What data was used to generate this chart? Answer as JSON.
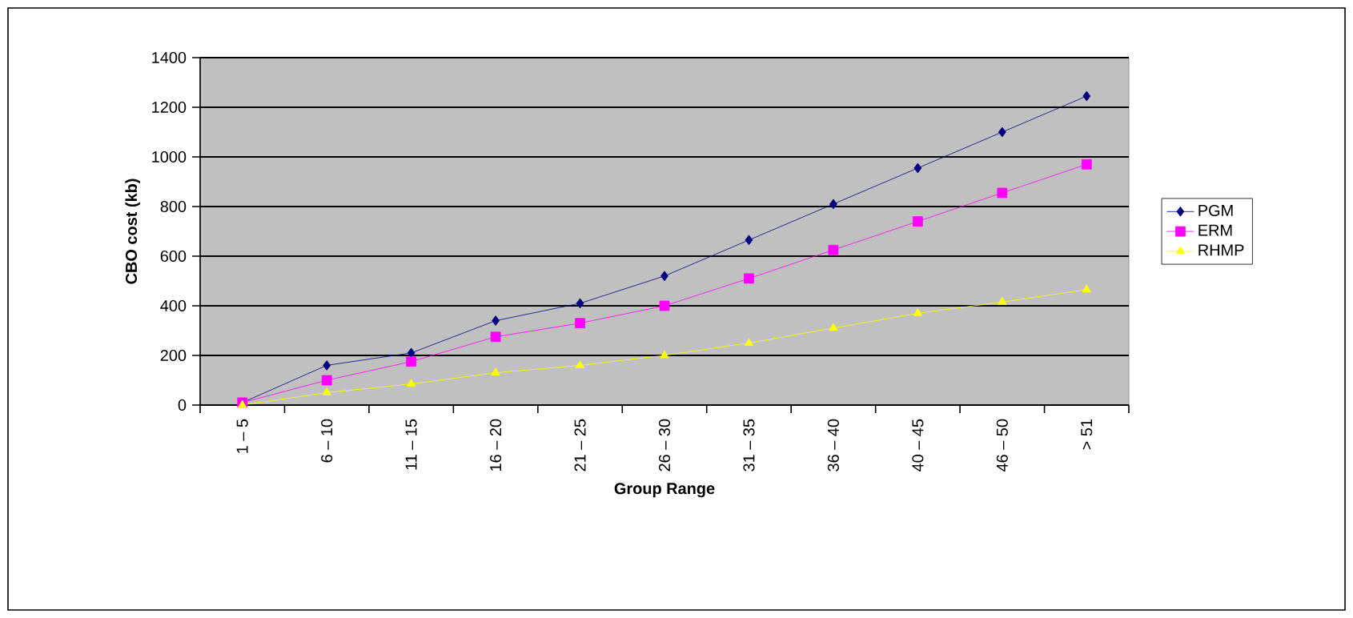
{
  "chart_data": {
    "type": "line",
    "xlabel": "Group Range",
    "ylabel": "CBO cost (kb)",
    "categories": [
      "1 – 5",
      "6 – 10",
      "11 – 15",
      "16 – 20",
      "21 – 25",
      "26 – 30",
      "31 – 35",
      "36 – 40",
      "40 – 45",
      "46 – 50",
      "> 51"
    ],
    "series": [
      {
        "name": "PGM",
        "color": "#000080",
        "marker": "diamond",
        "values": [
          10,
          160,
          210,
          340,
          410,
          520,
          665,
          810,
          955,
          1100,
          1245
        ]
      },
      {
        "name": "ERM",
        "color": "#ff00ff",
        "marker": "square",
        "values": [
          10,
          100,
          175,
          275,
          330,
          400,
          510,
          625,
          740,
          855,
          970
        ]
      },
      {
        "name": "RHMP",
        "color": "#ffff00",
        "marker": "triangle",
        "values": [
          0,
          50,
          85,
          130,
          160,
          200,
          250,
          310,
          370,
          415,
          465
        ]
      }
    ],
    "ylim": [
      0,
      1400
    ],
    "yticks": [
      0,
      200,
      400,
      600,
      800,
      1000,
      1200,
      1400
    ],
    "grid": "y",
    "legend": "right"
  }
}
